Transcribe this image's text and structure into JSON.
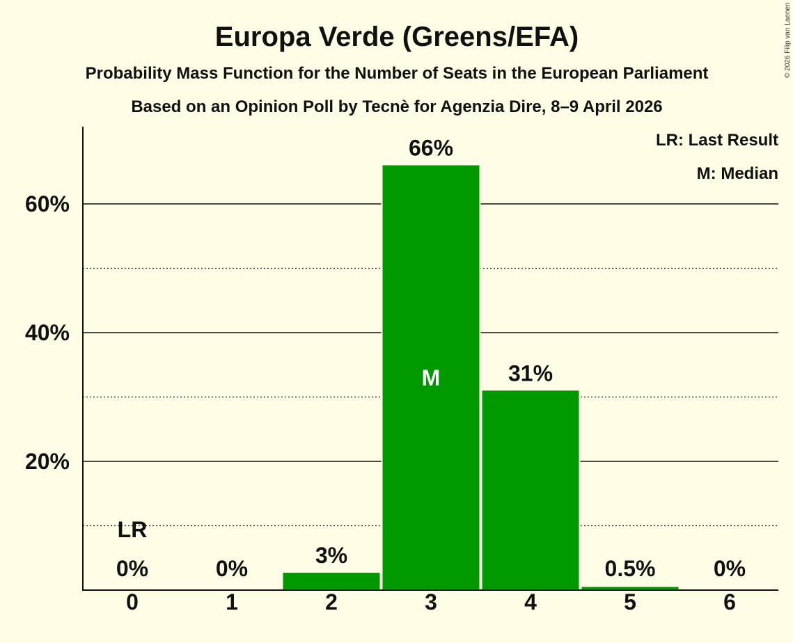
{
  "chart_data": {
    "type": "bar",
    "title": "Europa Verde (Greens/EFA)",
    "subtitle": "Probability Mass Function for the Number of Seats in the European Parliament",
    "subtitle2": "Based on an Opinion Poll by Tecnè for Agenzia Dire, 8–9 April 2026",
    "categories": [
      "0",
      "1",
      "2",
      "3",
      "4",
      "5",
      "6"
    ],
    "values": [
      0,
      0,
      2.7,
      66,
      31,
      0.5,
      0
    ],
    "value_labels": [
      "0%",
      "0%",
      "3%",
      "66%",
      "31%",
      "0.5%",
      "0%"
    ],
    "y_ticks": [
      20,
      40,
      60
    ],
    "y_tick_labels": [
      "20%",
      "40%",
      "60%"
    ],
    "y_minor_ticks": [
      10,
      30,
      50
    ],
    "ylim": [
      0,
      72
    ],
    "xlabel": "",
    "ylabel": "",
    "last_result": {
      "category": "0",
      "label": "LR"
    },
    "median": {
      "category": "3",
      "label": "M"
    },
    "legend": [
      "LR: Last Result",
      "M: Median"
    ],
    "bar_color": "#009900",
    "copyright": "© 2026 Filip van Laenen"
  }
}
